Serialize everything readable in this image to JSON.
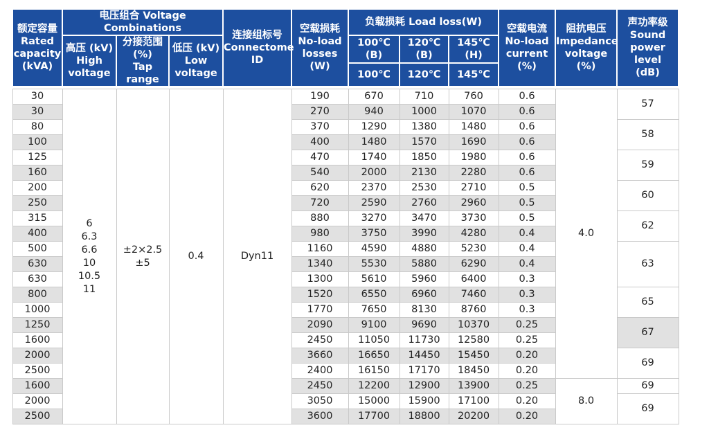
{
  "header": {
    "capacity": [
      "额定容量",
      "Rated",
      "capacity",
      "(kVA)"
    ],
    "voltage_group": "电压组合 Voltage Combinations",
    "high_voltage": [
      "高压 (kV)",
      "High",
      "voltage"
    ],
    "tap_range": [
      "分接范围",
      "(%)",
      "Tap range"
    ],
    "low_voltage": [
      "低压 (kV)",
      "Low",
      "voltage"
    ],
    "connection": [
      "连接组标号",
      "Connectome",
      "ID"
    ],
    "no_load_losses": [
      "空载损耗",
      "No-load",
      "losses",
      "(W)"
    ],
    "load_loss": "负载损耗 Load loss(W)",
    "load_temps": [
      "100℃ (B)",
      "120℃ (B)",
      "145℃ (H)"
    ],
    "load_temps_short": [
      "100℃",
      "120℃",
      "145℃"
    ],
    "no_load_current": [
      "空载电流",
      "No-load",
      "current",
      "(%)"
    ],
    "impedance": [
      "阻抗电压",
      "Impedance",
      "voltage",
      "(%)"
    ],
    "sound": [
      "声功率级",
      "Sound",
      "power level",
      "(dB)"
    ]
  },
  "table": {
    "rows": [
      [
        "30",
        "190",
        "670",
        "710",
        "760",
        "0.6"
      ],
      [
        "30",
        "270",
        "940",
        "1000",
        "1070",
        "0.6"
      ],
      [
        "80",
        "370",
        "1290",
        "1380",
        "1480",
        "0.6"
      ],
      [
        "100",
        "400",
        "1480",
        "1570",
        "1690",
        "0.6"
      ],
      [
        "125",
        "470",
        "1740",
        "1850",
        "1980",
        "0.6"
      ],
      [
        "160",
        "540",
        "2000",
        "2130",
        "2280",
        "0.6"
      ],
      [
        "200",
        "620",
        "2370",
        "2530",
        "2710",
        "0.5"
      ],
      [
        "250",
        "720",
        "2590",
        "2760",
        "2960",
        "0.5"
      ],
      [
        "315",
        "880",
        "3270",
        "3470",
        "3730",
        "0.5"
      ],
      [
        "400",
        "980",
        "3750",
        "3990",
        "4280",
        "0.4"
      ],
      [
        "500",
        "1160",
        "4590",
        "4880",
        "5230",
        "0.4"
      ],
      [
        "630",
        "1340",
        "5530",
        "5880",
        "6290",
        "0.4"
      ],
      [
        "630",
        "1300",
        "5610",
        "5960",
        "6400",
        "0.3"
      ],
      [
        "800",
        "1520",
        "6550",
        "6960",
        "7460",
        "0.3"
      ],
      [
        "1000",
        "1770",
        "7650",
        "8130",
        "8760",
        "0.3"
      ],
      [
        "1250",
        "2090",
        "9100",
        "9690",
        "10370",
        "0.25"
      ],
      [
        "1600",
        "2450",
        "11050",
        "11730",
        "12580",
        "0.25"
      ],
      [
        "2000",
        "3660",
        "16650",
        "14450",
        "15450",
        "0.20"
      ],
      [
        "2500",
        "2400",
        "16150",
        "17170",
        "18450",
        "0.20"
      ],
      [
        "1600",
        "2450",
        "12200",
        "12900",
        "13900",
        "0.25"
      ],
      [
        "2000",
        "3050",
        "15000",
        "15900",
        "17100",
        "0.20"
      ],
      [
        "2500",
        "3600",
        "17700",
        "18800",
        "20200",
        "0.20"
      ]
    ],
    "high_voltage_values": [
      "6",
      "6.3",
      "6.6",
      "10",
      "10.5",
      "11"
    ],
    "tap_range_values": [
      "±2×2.5",
      "±5"
    ],
    "low_voltage_value": "0.4",
    "connection_value": "Dyn11",
    "impedance_values": [
      "4.0",
      "8.0"
    ],
    "sound_values": [
      "57",
      "58",
      "59",
      "60",
      "62",
      "63",
      "65",
      "67",
      "69",
      "69",
      "69"
    ]
  }
}
